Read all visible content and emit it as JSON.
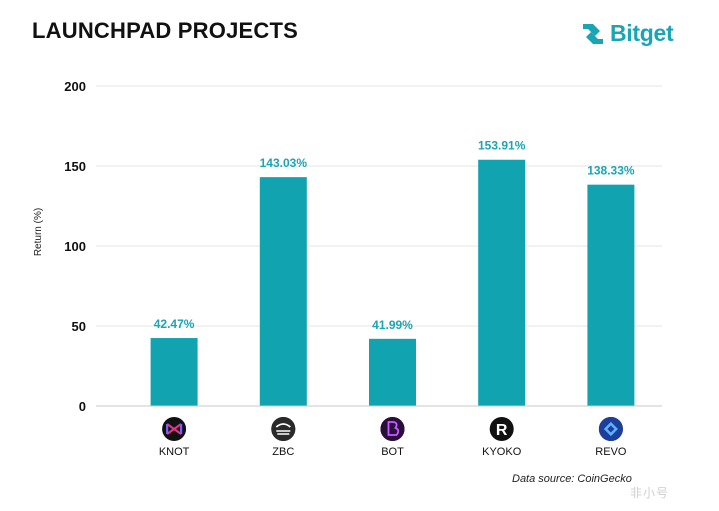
{
  "header": {
    "title": "LAUNCHPAD PROJECTS",
    "logo_text": "Bitget",
    "logo_icon": "bitget-arrows-icon"
  },
  "footer": {
    "source": "Data source: CoinGecko",
    "watermark": "非小号"
  },
  "colors": {
    "bar": "#11a3b0",
    "label": "#1aa5b6",
    "grid": "#e6e6e6",
    "axis": "#c8c8c8",
    "text": "#111111"
  },
  "chart_data": {
    "type": "bar",
    "categories": [
      "KNOT",
      "ZBC",
      "BOT",
      "KYOKO",
      "REVO"
    ],
    "values": [
      42.47,
      143.03,
      41.99,
      153.91,
      138.33
    ],
    "data_labels": [
      "42.47%",
      "143.03%",
      "41.99%",
      "153.91%",
      "138.33%"
    ],
    "category_icons": [
      "knot-logo-icon",
      "zbc-logo-icon",
      "bot-logo-icon",
      "kyoko-logo-icon",
      "revo-logo-icon"
    ],
    "ylabel": "Return (%)",
    "xlabel": "",
    "ylim": [
      0,
      200
    ],
    "yticks": [
      0,
      50,
      100,
      150,
      200
    ],
    "grid": true,
    "legend": "none"
  }
}
